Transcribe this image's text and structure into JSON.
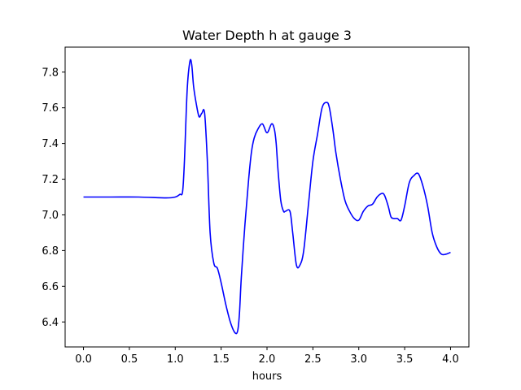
{
  "chart_data": {
    "type": "line",
    "title": "Water Depth h at gauge 3",
    "xlabel": "hours",
    "ylabel": "",
    "xlim": [
      -0.2,
      4.2
    ],
    "ylim": [
      6.26,
      7.94
    ],
    "x_ticks": [
      "0.0",
      "0.5",
      "1.0",
      "1.5",
      "2.0",
      "2.5",
      "3.0",
      "3.5",
      "4.0"
    ],
    "y_ticks": [
      "6.4",
      "6.6",
      "6.8",
      "7.0",
      "7.2",
      "7.4",
      "7.6",
      "7.8"
    ],
    "grid": false,
    "legend": "none",
    "series": [
      {
        "color": "#0000ff",
        "x": [
          0.0,
          0.3,
          0.6,
          0.9,
          1.0,
          1.05,
          1.08,
          1.1,
          1.13,
          1.16,
          1.18,
          1.2,
          1.23,
          1.26,
          1.29,
          1.32,
          1.35,
          1.38,
          1.42,
          1.46,
          1.5,
          1.55,
          1.6,
          1.65,
          1.68,
          1.7,
          1.72,
          1.76,
          1.8,
          1.83,
          1.86,
          1.9,
          1.95,
          2.0,
          2.05,
          2.08,
          2.1,
          2.12,
          2.15,
          2.18,
          2.2,
          2.25,
          2.28,
          2.32,
          2.36,
          2.4,
          2.45,
          2.5,
          2.55,
          2.6,
          2.65,
          2.68,
          2.72,
          2.75,
          2.8,
          2.85,
          2.9,
          2.95,
          3.0,
          3.05,
          3.1,
          3.15,
          3.2,
          3.25,
          3.28,
          3.32,
          3.35,
          3.38,
          3.42,
          3.46,
          3.5,
          3.55,
          3.6,
          3.65,
          3.7,
          3.75,
          3.8,
          3.85,
          3.9,
          3.95,
          4.0
        ],
        "y": [
          7.1,
          7.1,
          7.1,
          7.095,
          7.1,
          7.115,
          7.13,
          7.3,
          7.7,
          7.86,
          7.84,
          7.72,
          7.62,
          7.55,
          7.57,
          7.57,
          7.3,
          6.9,
          6.73,
          6.7,
          6.62,
          6.5,
          6.4,
          6.34,
          6.35,
          6.45,
          6.65,
          6.95,
          7.2,
          7.35,
          7.43,
          7.48,
          7.51,
          7.46,
          7.51,
          7.48,
          7.4,
          7.25,
          7.08,
          7.02,
          7.02,
          7.02,
          6.9,
          6.72,
          6.72,
          6.8,
          7.05,
          7.3,
          7.45,
          7.6,
          7.63,
          7.6,
          7.47,
          7.35,
          7.2,
          7.08,
          7.02,
          6.98,
          6.97,
          7.02,
          7.05,
          7.06,
          7.1,
          7.12,
          7.11,
          7.05,
          6.99,
          6.98,
          6.98,
          6.97,
          7.05,
          7.18,
          7.22,
          7.23,
          7.16,
          7.05,
          6.9,
          6.82,
          6.78,
          6.78,
          6.79
        ]
      }
    ]
  }
}
